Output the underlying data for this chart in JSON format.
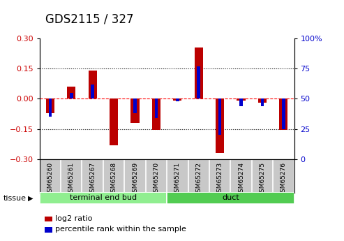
{
  "title": "GDS2115 / 327",
  "samples": [
    "GSM65260",
    "GSM65261",
    "GSM65267",
    "GSM65268",
    "GSM65269",
    "GSM65270",
    "GSM65271",
    "GSM65272",
    "GSM65273",
    "GSM65274",
    "GSM65275",
    "GSM65276"
  ],
  "log2_ratio": [
    -0.07,
    0.06,
    0.14,
    -0.23,
    -0.12,
    -0.155,
    -0.01,
    0.255,
    -0.27,
    -0.01,
    -0.02,
    -0.155
  ],
  "percentile_rank": [
    35,
    55,
    62,
    50,
    38,
    34,
    48,
    77,
    20,
    44,
    44,
    25
  ],
  "tissue_groups": [
    {
      "label": "terminal end bud",
      "start": 0,
      "end": 6,
      "color": "#90EE90"
    },
    {
      "label": "duct",
      "start": 6,
      "end": 12,
      "color": "#52CC52"
    }
  ],
  "ylim": [
    -0.3,
    0.3
  ],
  "yticks_left": [
    -0.3,
    -0.15,
    0,
    0.15,
    0.3
  ],
  "yticks_right": [
    0,
    25,
    50,
    75,
    100
  ],
  "bar_color_red": "#BB0000",
  "bar_color_blue": "#0000CC",
  "plot_bg_color": "#FFFFFF",
  "zero_line_color": "#FF0000",
  "tissue_label": "tissue",
  "legend_log2": "log2 ratio",
  "legend_pct": "percentile rank within the sample",
  "title_fontsize": 12,
  "tick_fontsize": 8,
  "sample_tick_fontsize": 6.5,
  "legend_fontsize": 8
}
